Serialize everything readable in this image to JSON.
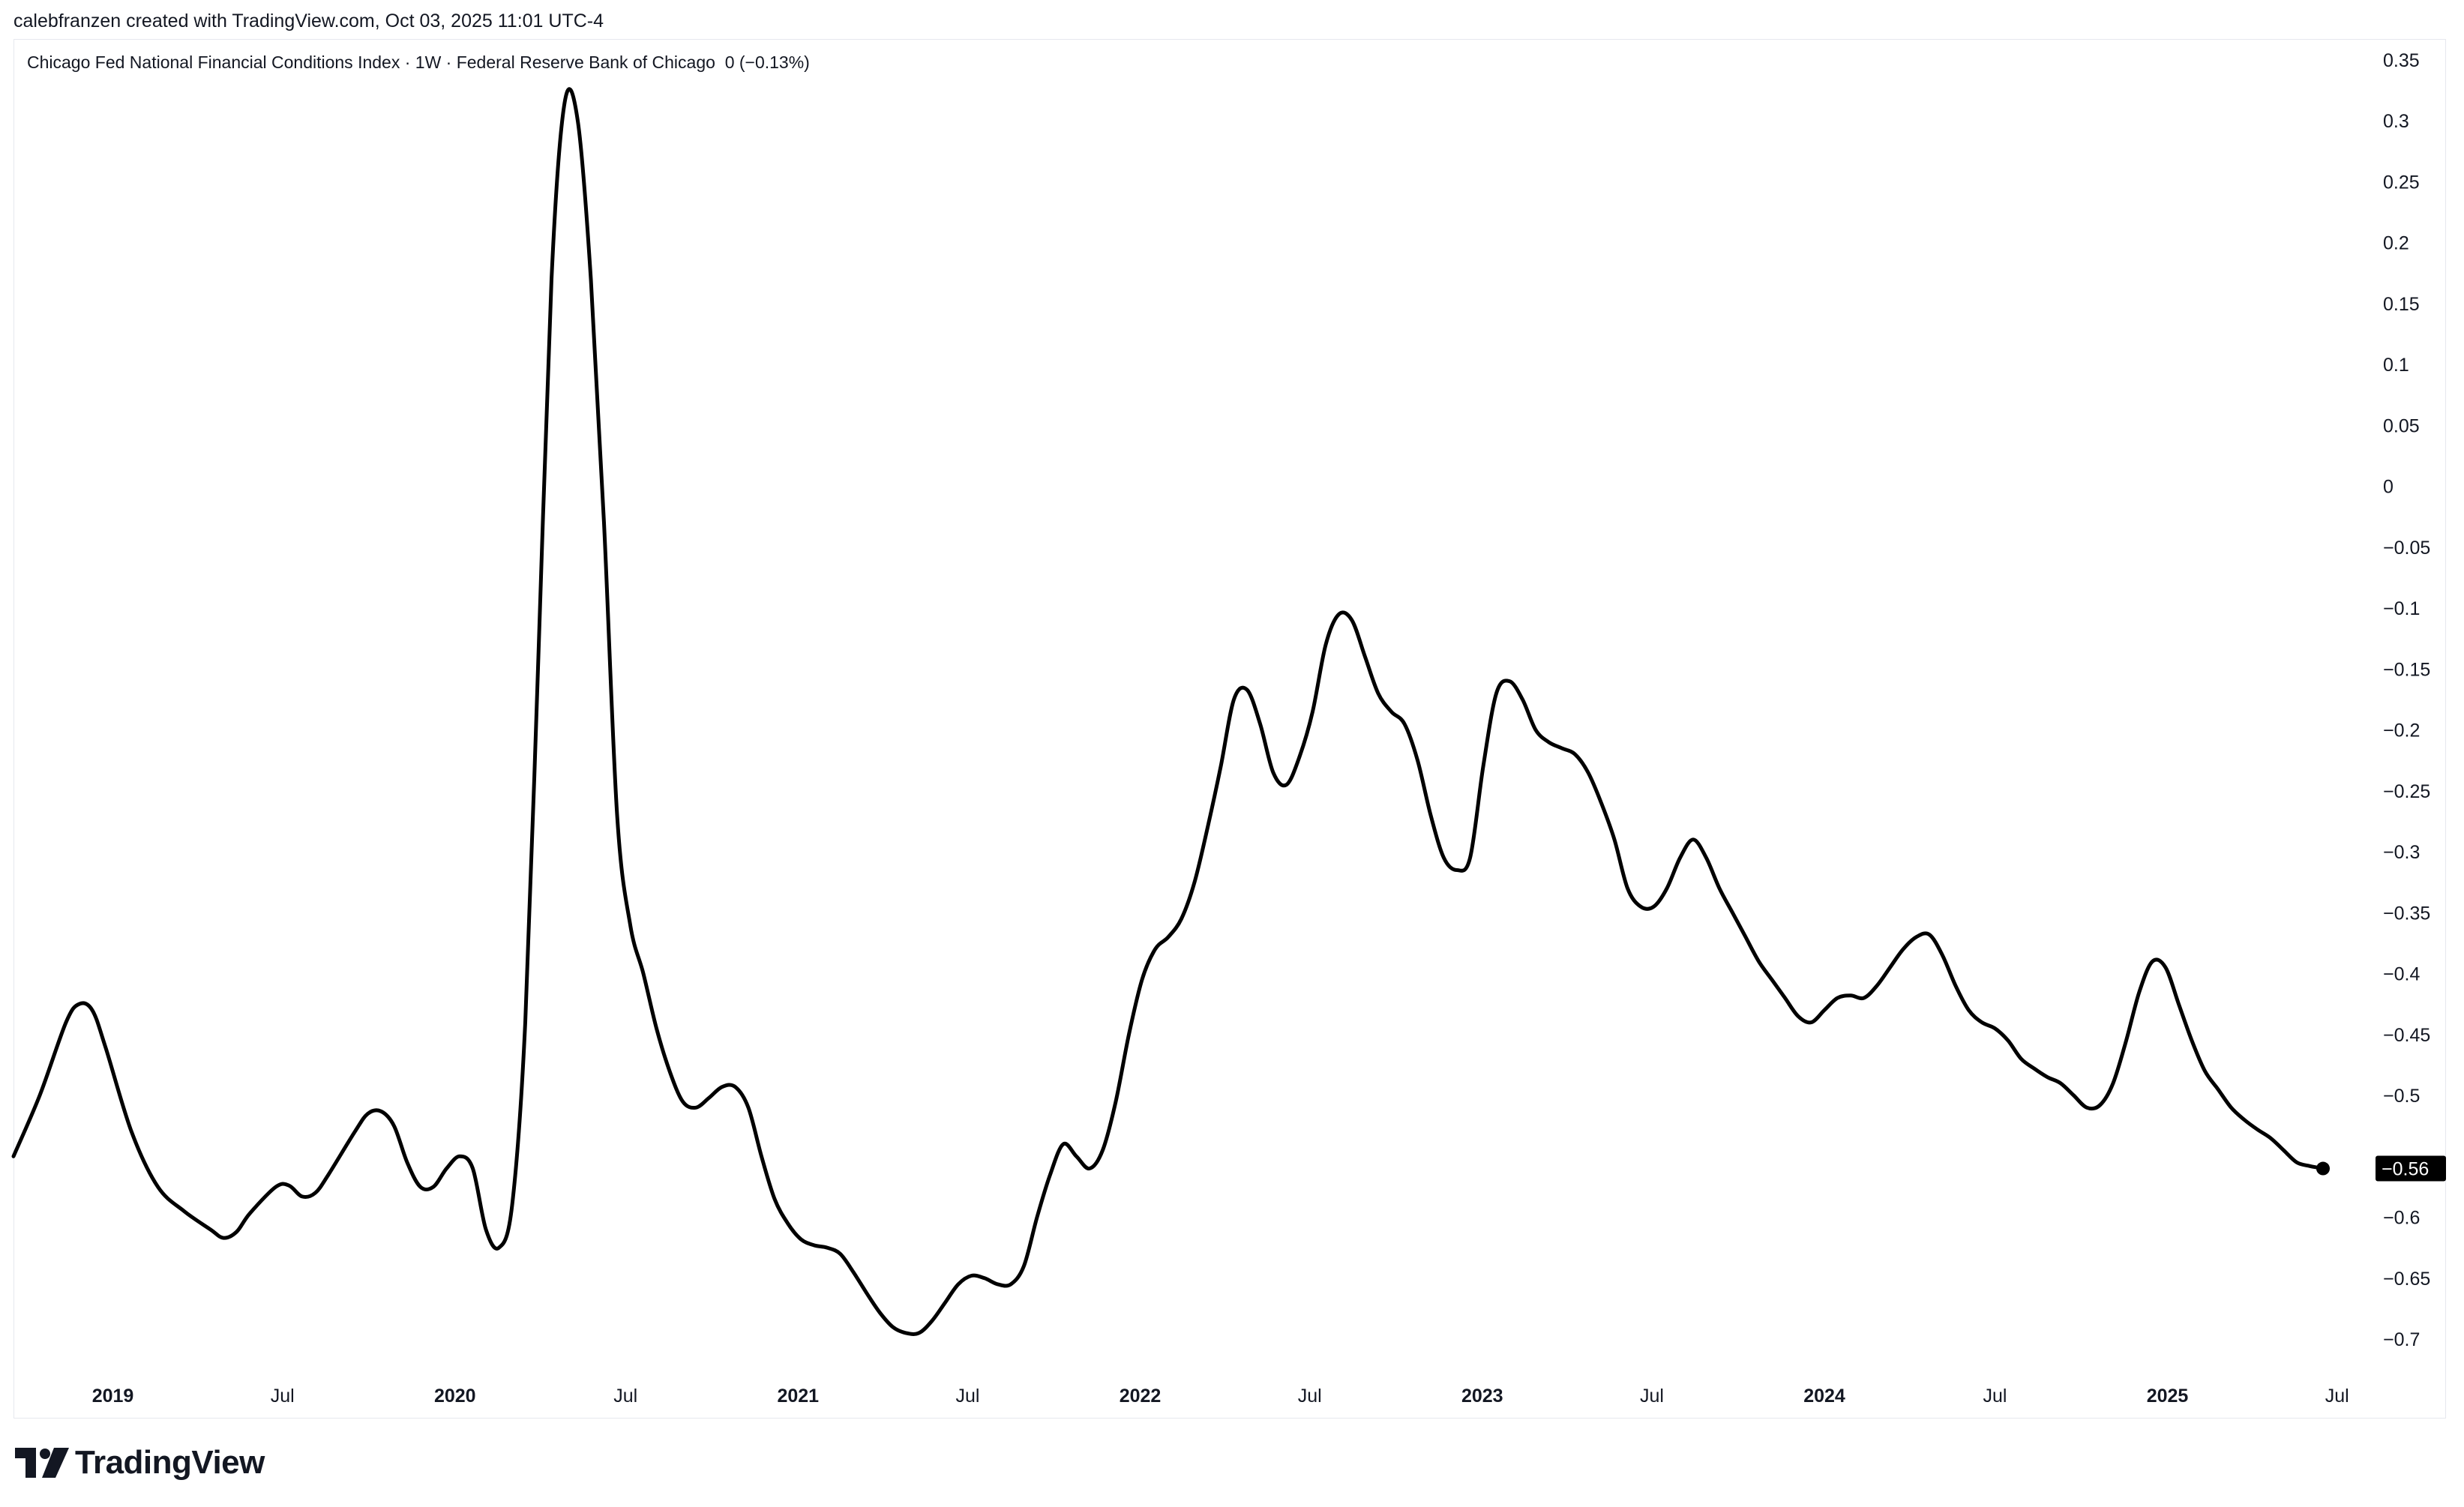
{
  "header": {
    "attribution": "calebfranzen created with TradingView.com, Oct 03, 2025 11:01 UTC-4"
  },
  "legend": {
    "symbol": "Chicago Fed National Financial Conditions Index · 1W · Federal Reserve Bank of Chicago",
    "value": "0 (−0.13%)"
  },
  "brand": {
    "logo_icon": "tradingview-logo-icon",
    "name": "TradingView"
  },
  "colors": {
    "line": "#000000",
    "badge_bg": "#000000",
    "badge_text": "#ffffff",
    "axis_text": "#131722",
    "frame": "#e6e8ee"
  },
  "chart_data": {
    "type": "line",
    "title": "Chicago Fed National Financial Conditions Index · 1W · Federal Reserve Bank of Chicago",
    "xlabel": "",
    "ylabel": "",
    "ylim": [
      -0.73,
      0.36
    ],
    "grid": false,
    "y_ticks": [
      "0.35",
      "0.3",
      "0.25",
      "0.2",
      "0.15",
      "0.1",
      "0.05",
      "0",
      "−0.05",
      "−0.1",
      "−0.15",
      "−0.2",
      "−0.25",
      "−0.3",
      "−0.35",
      "−0.4",
      "−0.45",
      "−0.5",
      "−0.6",
      "−0.65",
      "−0.7"
    ],
    "y_tick_values": [
      0.35,
      0.3,
      0.25,
      0.2,
      0.15,
      0.1,
      0.05,
      0,
      -0.05,
      -0.1,
      -0.15,
      -0.2,
      -0.25,
      -0.3,
      -0.35,
      -0.4,
      -0.45,
      -0.5,
      -0.6,
      -0.65,
      -0.7
    ],
    "x_ticks": [
      {
        "label": "2019",
        "date": "2019-01-01",
        "bold": true
      },
      {
        "label": "Jul",
        "date": "2019-07-01",
        "bold": false
      },
      {
        "label": "2020",
        "date": "2020-01-01",
        "bold": true
      },
      {
        "label": "Jul",
        "date": "2020-07-01",
        "bold": false
      },
      {
        "label": "2021",
        "date": "2021-01-01",
        "bold": true
      },
      {
        "label": "Jul",
        "date": "2021-07-01",
        "bold": false
      },
      {
        "label": "2022",
        "date": "2022-01-01",
        "bold": true
      },
      {
        "label": "Jul",
        "date": "2022-07-01",
        "bold": false
      },
      {
        "label": "2023",
        "date": "2023-01-01",
        "bold": true
      },
      {
        "label": "Jul",
        "date": "2023-07-01",
        "bold": false
      },
      {
        "label": "2024",
        "date": "2024-01-01",
        "bold": true
      },
      {
        "label": "Jul",
        "date": "2024-07-01",
        "bold": false
      },
      {
        "label": "2025",
        "date": "2025-01-01",
        "bold": true
      },
      {
        "label": "Jul",
        "date": "2025-07-01",
        "bold": false
      }
    ],
    "last_value_label": "−0.56",
    "series": [
      {
        "points": [
          [
            "2018-09-17",
            -0.55
          ],
          [
            "2018-10-15",
            -0.5
          ],
          [
            "2018-11-12",
            -0.44
          ],
          [
            "2018-11-26",
            -0.425
          ],
          [
            "2018-12-10",
            -0.43
          ],
          [
            "2018-12-24",
            -0.46
          ],
          [
            "2019-01-21",
            -0.53
          ],
          [
            "2019-02-18",
            -0.575
          ],
          [
            "2019-03-18",
            -0.595
          ],
          [
            "2019-04-15",
            -0.61
          ],
          [
            "2019-04-29",
            -0.617
          ],
          [
            "2019-05-13",
            -0.612
          ],
          [
            "2019-05-27",
            -0.597
          ],
          [
            "2019-06-24",
            -0.575
          ],
          [
            "2019-07-08",
            -0.574
          ],
          [
            "2019-07-22",
            -0.583
          ],
          [
            "2019-08-05",
            -0.58
          ],
          [
            "2019-08-19",
            -0.565
          ],
          [
            "2019-09-16",
            -0.53
          ],
          [
            "2019-09-30",
            -0.515
          ],
          [
            "2019-10-14",
            -0.513
          ],
          [
            "2019-10-28",
            -0.525
          ],
          [
            "2019-11-11",
            -0.555
          ],
          [
            "2019-11-25",
            -0.575
          ],
          [
            "2019-12-09",
            -0.575
          ],
          [
            "2019-12-23",
            -0.56
          ],
          [
            "2020-01-06",
            -0.55
          ],
          [
            "2020-01-20",
            -0.56
          ],
          [
            "2020-02-03",
            -0.61
          ],
          [
            "2020-02-17",
            -0.625
          ],
          [
            "2020-03-02",
            -0.59
          ],
          [
            "2020-03-16",
            -0.44
          ],
          [
            "2020-03-30",
            -0.14
          ],
          [
            "2020-04-13",
            0.17
          ],
          [
            "2020-04-27",
            0.315
          ],
          [
            "2020-05-11",
            0.3
          ],
          [
            "2020-05-25",
            0.17
          ],
          [
            "2020-06-08",
            -0.03
          ],
          [
            "2020-06-22",
            -0.27
          ],
          [
            "2020-07-06",
            -0.36
          ],
          [
            "2020-07-20",
            -0.4
          ],
          [
            "2020-08-03",
            -0.445
          ],
          [
            "2020-08-17",
            -0.48
          ],
          [
            "2020-08-31",
            -0.505
          ],
          [
            "2020-09-14",
            -0.51
          ],
          [
            "2020-09-28",
            -0.502
          ],
          [
            "2020-10-12",
            -0.493
          ],
          [
            "2020-10-26",
            -0.493
          ],
          [
            "2020-11-09",
            -0.51
          ],
          [
            "2020-11-23",
            -0.55
          ],
          [
            "2020-12-07",
            -0.585
          ],
          [
            "2020-12-21",
            -0.605
          ],
          [
            "2021-01-04",
            -0.618
          ],
          [
            "2021-01-18",
            -0.623
          ],
          [
            "2021-02-01",
            -0.625
          ],
          [
            "2021-02-15",
            -0.63
          ],
          [
            "2021-03-01",
            -0.645
          ],
          [
            "2021-03-15",
            -0.662
          ],
          [
            "2021-03-29",
            -0.678
          ],
          [
            "2021-04-12",
            -0.69
          ],
          [
            "2021-04-26",
            -0.695
          ],
          [
            "2021-05-10",
            -0.695
          ],
          [
            "2021-05-24",
            -0.685
          ],
          [
            "2021-06-07",
            -0.67
          ],
          [
            "2021-06-21",
            -0.655
          ],
          [
            "2021-07-05",
            -0.648
          ],
          [
            "2021-07-19",
            -0.65
          ],
          [
            "2021-08-02",
            -0.655
          ],
          [
            "2021-08-16",
            -0.655
          ],
          [
            "2021-08-30",
            -0.64
          ],
          [
            "2021-09-13",
            -0.6
          ],
          [
            "2021-09-27",
            -0.565
          ],
          [
            "2021-10-11",
            -0.54
          ],
          [
            "2021-10-25",
            -0.55
          ],
          [
            "2021-11-08",
            -0.56
          ],
          [
            "2021-11-22",
            -0.545
          ],
          [
            "2021-12-06",
            -0.505
          ],
          [
            "2021-12-20",
            -0.45
          ],
          [
            "2022-01-03",
            -0.405
          ],
          [
            "2022-01-17",
            -0.38
          ],
          [
            "2022-01-31",
            -0.37
          ],
          [
            "2022-02-14",
            -0.355
          ],
          [
            "2022-02-28",
            -0.325
          ],
          [
            "2022-03-14",
            -0.28
          ],
          [
            "2022-03-28",
            -0.23
          ],
          [
            "2022-04-11",
            -0.175
          ],
          [
            "2022-04-25",
            -0.167
          ],
          [
            "2022-05-09",
            -0.195
          ],
          [
            "2022-05-23",
            -0.235
          ],
          [
            "2022-06-06",
            -0.245
          ],
          [
            "2022-06-20",
            -0.222
          ],
          [
            "2022-07-04",
            -0.185
          ],
          [
            "2022-07-18",
            -0.13
          ],
          [
            "2022-08-01",
            -0.105
          ],
          [
            "2022-08-15",
            -0.11
          ],
          [
            "2022-08-29",
            -0.14
          ],
          [
            "2022-09-12",
            -0.17
          ],
          [
            "2022-09-26",
            -0.185
          ],
          [
            "2022-10-10",
            -0.195
          ],
          [
            "2022-10-24",
            -0.225
          ],
          [
            "2022-11-07",
            -0.27
          ],
          [
            "2022-11-21",
            -0.305
          ],
          [
            "2022-12-05",
            -0.315
          ],
          [
            "2022-12-19",
            -0.305
          ],
          [
            "2023-01-02",
            -0.23
          ],
          [
            "2023-01-16",
            -0.17
          ],
          [
            "2023-01-30",
            -0.16
          ],
          [
            "2023-02-13",
            -0.175
          ],
          [
            "2023-02-27",
            -0.2
          ],
          [
            "2023-03-13",
            -0.21
          ],
          [
            "2023-03-27",
            -0.215
          ],
          [
            "2023-04-10",
            -0.22
          ],
          [
            "2023-04-24",
            -0.235
          ],
          [
            "2023-05-08",
            -0.26
          ],
          [
            "2023-05-22",
            -0.29
          ],
          [
            "2023-06-05",
            -0.33
          ],
          [
            "2023-06-19",
            -0.345
          ],
          [
            "2023-07-03",
            -0.345
          ],
          [
            "2023-07-17",
            -0.33
          ],
          [
            "2023-07-31",
            -0.305
          ],
          [
            "2023-08-14",
            -0.29
          ],
          [
            "2023-08-28",
            -0.305
          ],
          [
            "2023-09-11",
            -0.33
          ],
          [
            "2023-09-25",
            -0.35
          ],
          [
            "2023-10-09",
            -0.37
          ],
          [
            "2023-10-23",
            -0.39
          ],
          [
            "2023-11-06",
            -0.405
          ],
          [
            "2023-11-20",
            -0.42
          ],
          [
            "2023-12-04",
            -0.435
          ],
          [
            "2023-12-18",
            -0.44
          ],
          [
            "2024-01-01",
            -0.43
          ],
          [
            "2024-01-15",
            -0.42
          ],
          [
            "2024-01-29",
            -0.418
          ],
          [
            "2024-02-12",
            -0.42
          ],
          [
            "2024-02-26",
            -0.41
          ],
          [
            "2024-03-11",
            -0.395
          ],
          [
            "2024-03-25",
            -0.38
          ],
          [
            "2024-04-08",
            -0.37
          ],
          [
            "2024-04-22",
            -0.368
          ],
          [
            "2024-05-06",
            -0.385
          ],
          [
            "2024-05-20",
            -0.41
          ],
          [
            "2024-06-03",
            -0.43
          ],
          [
            "2024-06-17",
            -0.44
          ],
          [
            "2024-07-01",
            -0.445
          ],
          [
            "2024-07-15",
            -0.455
          ],
          [
            "2024-07-29",
            -0.47
          ],
          [
            "2024-08-12",
            -0.478
          ],
          [
            "2024-08-26",
            -0.485
          ],
          [
            "2024-09-09",
            -0.49
          ],
          [
            "2024-09-23",
            -0.5
          ],
          [
            "2024-10-07",
            -0.51
          ],
          [
            "2024-10-21",
            -0.508
          ],
          [
            "2024-11-04",
            -0.49
          ],
          [
            "2024-11-18",
            -0.455
          ],
          [
            "2024-12-02",
            -0.415
          ],
          [
            "2024-12-16",
            -0.39
          ],
          [
            "2024-12-30",
            -0.395
          ],
          [
            "2025-01-13",
            -0.425
          ],
          [
            "2025-01-27",
            -0.455
          ],
          [
            "2025-02-10",
            -0.48
          ],
          [
            "2025-02-24",
            -0.495
          ],
          [
            "2025-03-10",
            -0.51
          ],
          [
            "2025-03-24",
            -0.52
          ],
          [
            "2025-04-07",
            -0.528
          ],
          [
            "2025-04-21",
            -0.535
          ],
          [
            "2025-05-05",
            -0.545
          ],
          [
            "2025-05-19",
            -0.555
          ],
          [
            "2025-06-02",
            -0.558
          ],
          [
            "2025-06-16",
            -0.56
          ]
        ]
      }
    ]
  }
}
